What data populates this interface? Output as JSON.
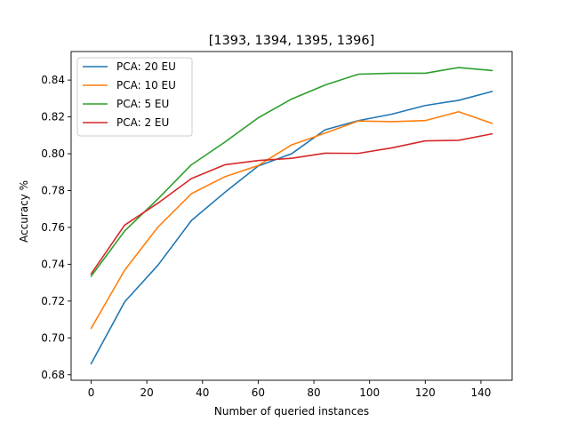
{
  "chart_data": {
    "type": "line",
    "title": "[1393, 1394, 1395, 1396]",
    "xlabel": "Number of queried instances",
    "ylabel": "Accuracy %",
    "xlim": [
      -7.2,
      151.2
    ],
    "ylim": [
      0.677,
      0.8555
    ],
    "xticks": [
      0,
      20,
      40,
      60,
      80,
      100,
      120,
      140
    ],
    "yticks": [
      0.68,
      0.7,
      0.72,
      0.74,
      0.76,
      0.78,
      0.8,
      0.82,
      0.84
    ],
    "grid": false,
    "legend_position": "top-left",
    "x": [
      0,
      12,
      24,
      36,
      48,
      60,
      72,
      84,
      96,
      108,
      120,
      132,
      144
    ],
    "series": [
      {
        "name": "PCA: 20 EU",
        "color": "#1f77b4",
        "values": [
          0.686,
          0.7195,
          0.7395,
          0.7637,
          0.779,
          0.7933,
          0.8,
          0.813,
          0.818,
          0.8215,
          0.8262,
          0.829,
          0.8338
        ]
      },
      {
        "name": "PCA: 10 EU",
        "color": "#ff7f0e",
        "values": [
          0.7052,
          0.7367,
          0.7602,
          0.7783,
          0.7875,
          0.7936,
          0.8048,
          0.8112,
          0.8178,
          0.8174,
          0.818,
          0.8228,
          0.8165
        ]
      },
      {
        "name": "PCA: 5 EU",
        "color": "#2ca02c",
        "values": [
          0.7335,
          0.758,
          0.7755,
          0.794,
          0.8063,
          0.8195,
          0.8297,
          0.8373,
          0.8432,
          0.8437,
          0.8437,
          0.8468,
          0.8452
        ]
      },
      {
        "name": "PCA: 2 EU",
        "color": "#d62728",
        "values": [
          0.7348,
          0.7612,
          0.7732,
          0.7865,
          0.794,
          0.7963,
          0.7975,
          0.8003,
          0.8002,
          0.8032,
          0.807,
          0.8073,
          0.8108
        ]
      }
    ]
  }
}
